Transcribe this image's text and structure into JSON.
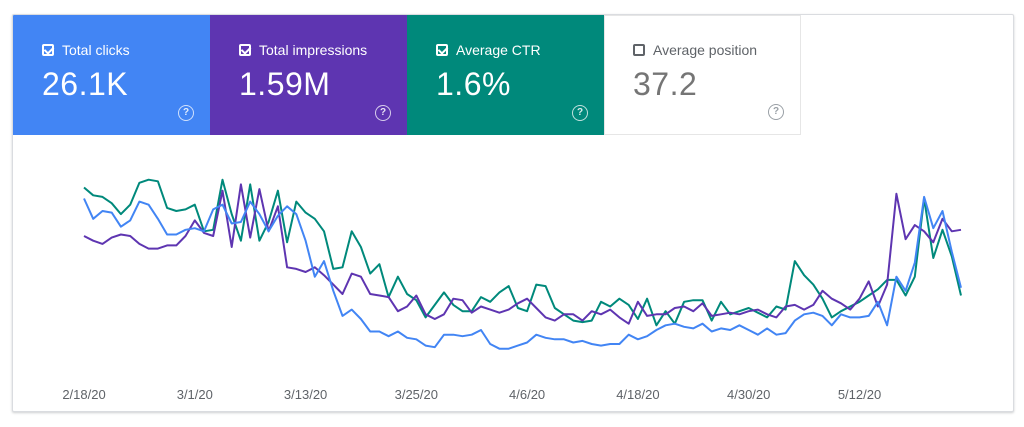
{
  "metrics": [
    {
      "label": "Total clicks",
      "value": "26.1K",
      "checked": true,
      "color": "#4285f4"
    },
    {
      "label": "Total impressions",
      "value": "1.59M",
      "checked": true,
      "color": "#5e35b1"
    },
    {
      "label": "Average CTR",
      "value": "1.6%",
      "checked": true,
      "color": "#00897b"
    },
    {
      "label": "Average position",
      "value": "37.2",
      "checked": false,
      "color": "#ffffff"
    }
  ],
  "help_glyph": "?",
  "chart_data": {
    "type": "line",
    "x_start": "2020-02-18",
    "x_end": "2020-05-17",
    "x_tick_labels": [
      "2/18/20",
      "3/1/20",
      "3/13/20",
      "3/25/20",
      "4/6/20",
      "4/18/20",
      "4/30/20",
      "5/12/20"
    ],
    "y_axis_visible": false,
    "grid": false,
    "series": [
      {
        "color": "#00897b",
        "values": [
          87,
          82,
          81,
          77,
          70,
          76,
          90,
          92,
          91,
          74,
          72,
          73,
          76,
          59,
          60,
          92,
          70,
          53,
          89,
          53,
          65,
          85,
          52,
          78,
          71,
          67,
          59,
          35,
          36,
          59,
          49,
          32,
          38,
          17,
          30,
          19,
          15,
          4,
          12,
          20,
          12,
          8,
          8,
          17,
          14,
          20,
          24,
          10,
          8,
          25,
          24,
          10,
          6,
          2,
          1,
          2,
          14,
          11,
          16,
          12,
          3,
          16,
          -1,
          8,
          0,
          14,
          15,
          15,
          2,
          14,
          6,
          8,
          10,
          7,
          4,
          11,
          9,
          40,
          31,
          25,
          16,
          4,
          8,
          11,
          14,
          18,
          22,
          28,
          28,
          18,
          30,
          80,
          42,
          60,
          43,
          18
        ]
      },
      {
        "color": "#5e35b1",
        "values": [
          56,
          53,
          51,
          55,
          57,
          56,
          51,
          48,
          48,
          50,
          50,
          56,
          66,
          58,
          56,
          85,
          49,
          89,
          55,
          86,
          59,
          75,
          36,
          35,
          33,
          36,
          31,
          25,
          19,
          32,
          30,
          19,
          18,
          17,
          8,
          11,
          18,
          6,
          3,
          6,
          16,
          15,
          7,
          11,
          9,
          7,
          9,
          13,
          16,
          10,
          4,
          2,
          6,
          6,
          2,
          8,
          6,
          9,
          4,
          0,
          14,
          5,
          6,
          6,
          10,
          11,
          8,
          13,
          5,
          6,
          7,
          6,
          8,
          9,
          6,
          4,
          11,
          12,
          9,
          12,
          21,
          16,
          13,
          9,
          16,
          27,
          11,
          25,
          83,
          54,
          63,
          59,
          52,
          67,
          59,
          60
        ]
      },
      {
        "color": "#4285f4",
        "values": [
          80,
          67,
          72,
          71,
          62,
          66,
          78,
          76,
          67,
          57,
          57,
          60,
          61,
          59,
          73,
          76,
          64,
          65,
          78,
          70,
          59,
          69,
          75,
          70,
          53,
          30,
          40,
          21,
          5,
          9,
          3,
          -5,
          -5,
          -8,
          -5,
          -9,
          -10,
          -14,
          -15,
          -7,
          -7,
          -8,
          -7,
          -4,
          -13,
          -16,
          -16,
          -14,
          -12,
          -7,
          -9,
          -10,
          -10,
          -12,
          -11,
          -13,
          -14,
          -13,
          -13,
          -7,
          -10,
          -8,
          -4,
          -1,
          0,
          -2,
          -3,
          0,
          -5,
          -3,
          -4,
          -1,
          -4,
          -7,
          -3,
          -7,
          -6,
          2,
          6,
          7,
          5,
          -1,
          6,
          4,
          4,
          5,
          14,
          -1,
          30,
          21,
          39,
          81,
          61,
          72,
          46,
          23
        ]
      }
    ]
  }
}
